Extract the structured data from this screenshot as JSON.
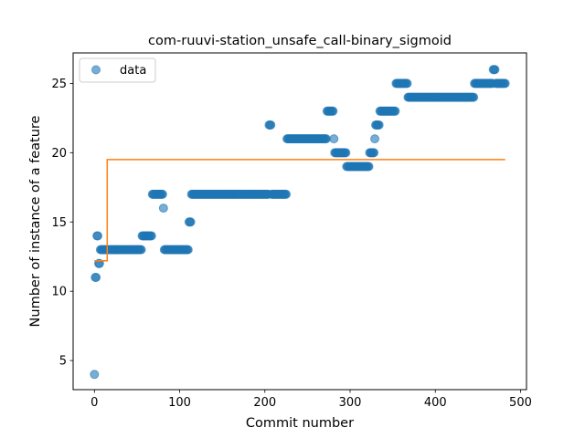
{
  "chart_data": {
    "type": "scatter",
    "title": "com-ruuvi-station_unsafe_call-binary_sigmoid",
    "xlabel": "Commit number",
    "ylabel": "Number of instance of a feature",
    "xlim": [
      -25,
      507
    ],
    "ylim": [
      2.9,
      27.2
    ],
    "xticks": [
      0,
      100,
      200,
      300,
      400,
      500
    ],
    "yticks": [
      5,
      10,
      15,
      20,
      25
    ],
    "grid": false,
    "legend": {
      "position": "top-left",
      "entries": [
        "data"
      ]
    },
    "colors": {
      "data": "#1f77b4",
      "fit": "#ff7f0e"
    },
    "series": [
      {
        "name": "data",
        "kind": "scatter",
        "segments": [
          [
            0,
            0,
            4
          ],
          [
            1,
            2,
            11
          ],
          [
            3,
            4,
            14
          ],
          [
            5,
            6,
            12
          ],
          [
            7,
            55,
            13
          ],
          [
            56,
            67,
            14
          ],
          [
            68,
            80,
            17
          ],
          [
            81,
            81,
            16
          ],
          [
            82,
            110,
            13
          ],
          [
            111,
            113,
            15
          ],
          [
            114,
            204,
            17
          ],
          [
            205,
            207,
            22
          ],
          [
            208,
            225,
            17
          ],
          [
            226,
            272,
            21
          ],
          [
            273,
            280,
            23
          ],
          [
            281,
            281,
            21
          ],
          [
            282,
            295,
            20
          ],
          [
            296,
            322,
            19
          ],
          [
            323,
            328,
            20
          ],
          [
            329,
            329,
            21
          ],
          [
            330,
            334,
            22
          ],
          [
            335,
            353,
            23
          ],
          [
            354,
            367,
            25
          ],
          [
            368,
            445,
            24
          ],
          [
            446,
            467,
            25
          ],
          [
            468,
            470,
            26
          ],
          [
            471,
            482,
            25
          ]
        ]
      },
      {
        "name": "fit",
        "kind": "step-line",
        "points": [
          [
            0,
            12.2
          ],
          [
            15,
            12.2
          ],
          [
            15,
            19.5
          ],
          [
            482,
            19.5
          ]
        ]
      }
    ]
  }
}
